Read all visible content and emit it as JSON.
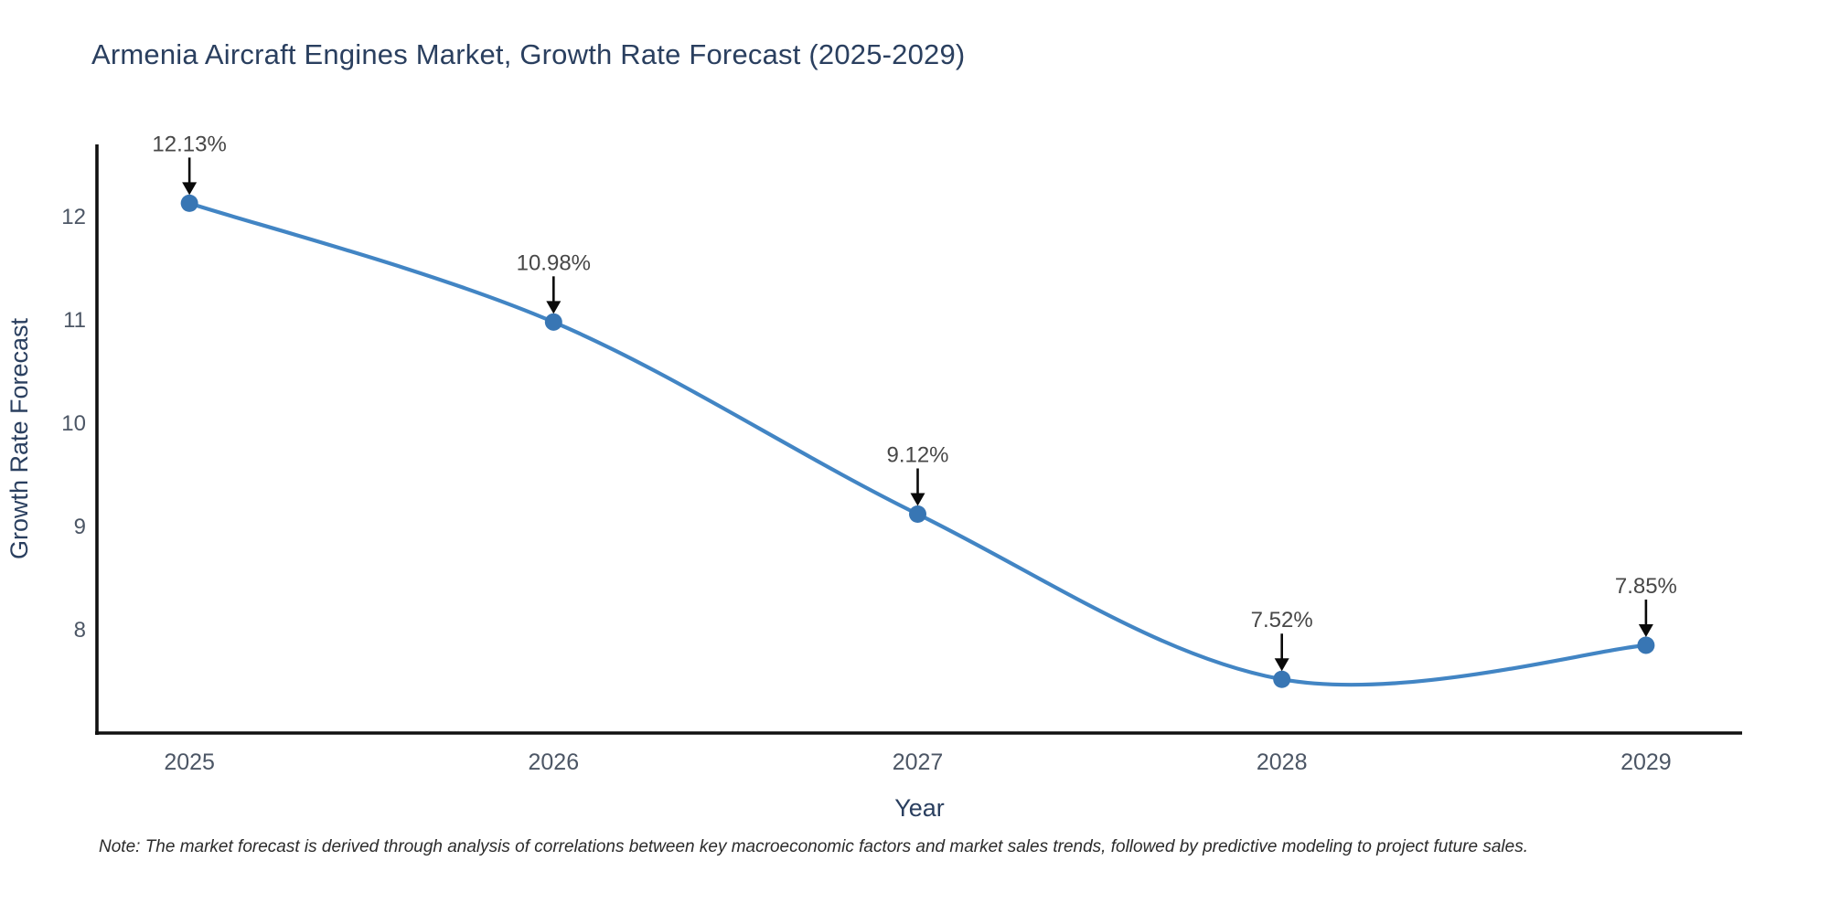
{
  "chart_data": {
    "type": "line",
    "title": "Armenia Aircraft Engines Market, Growth Rate Forecast (2025-2029)",
    "x": [
      2025,
      2026,
      2027,
      2028,
      2029
    ],
    "values": [
      12.13,
      10.98,
      9.12,
      7.52,
      7.85
    ],
    "data_labels": [
      "12.13%",
      "10.98%",
      "9.12%",
      "7.52%",
      "7.85%"
    ],
    "xlabel": "Year",
    "ylabel": "Growth Rate Forecast",
    "x_ticks": [
      "2025",
      "2026",
      "2027",
      "2028",
      "2029"
    ],
    "y_ticks": [
      8,
      9,
      10,
      11,
      12
    ],
    "x_range": [
      2024.746,
      2029.264
    ],
    "y_range": [
      7.0,
      12.7
    ],
    "line_shape": "spline",
    "grid": false,
    "legend_position": "none",
    "colors": {
      "line": "#4285c4",
      "marker": "#3876b4",
      "annotation_text": "#474747",
      "annotation_arrow": "#0a0a0a",
      "axis_line": "#111111",
      "tick_label": "#4c5665",
      "axis_title": "#2a3f5f",
      "title": "#2a3f5f"
    }
  },
  "footnote": "Note: The market forecast is derived through analysis of correlations between key macroeconomic factors and market sales trends, followed by predictive modeling to project future sales."
}
